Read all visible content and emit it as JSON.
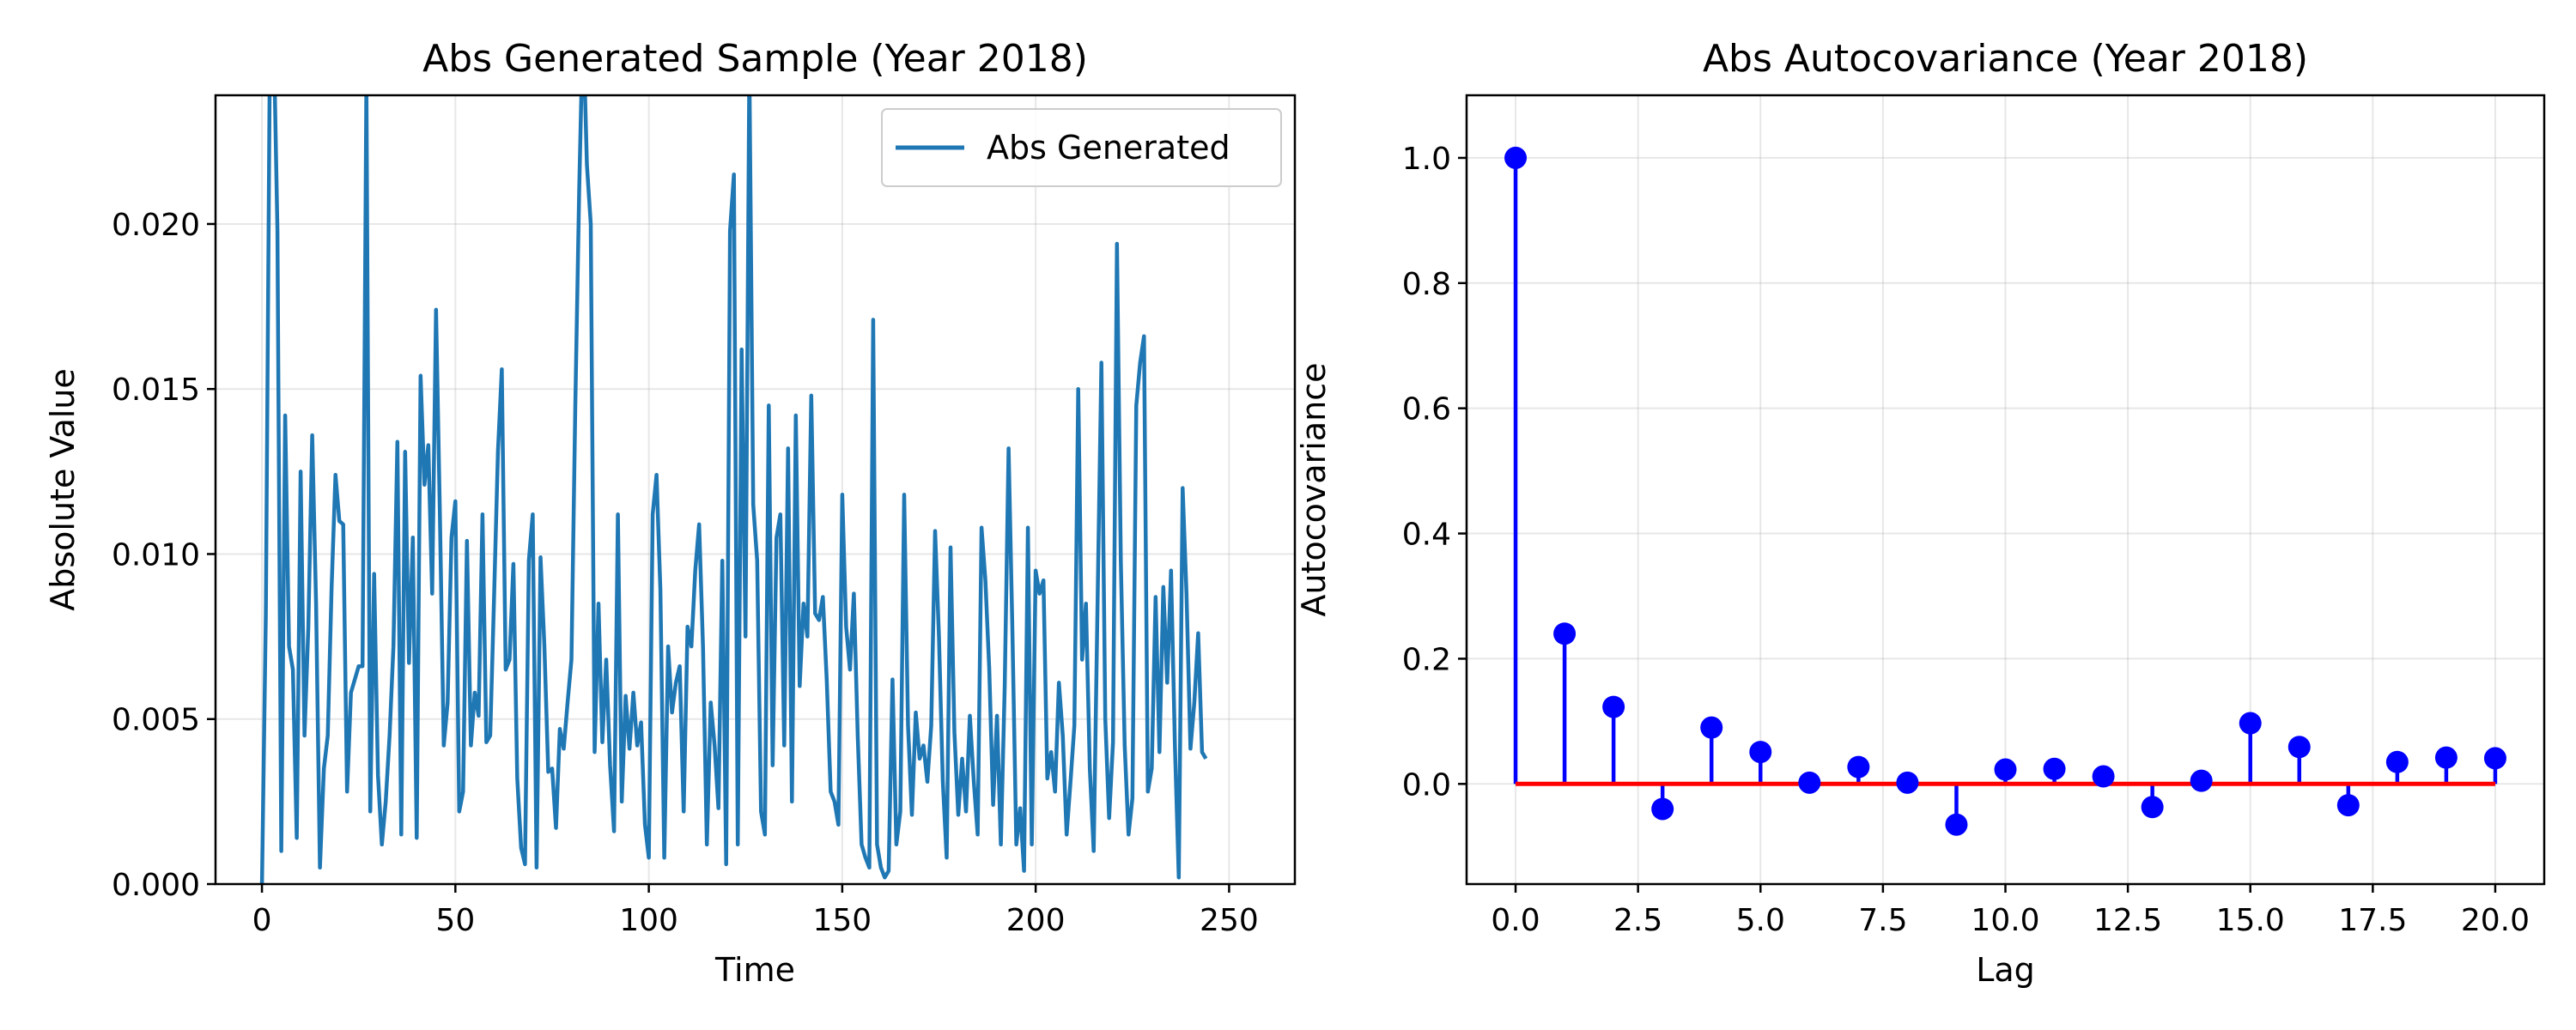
{
  "chart_data": [
    {
      "type": "line",
      "title": "Abs Generated Sample (Year 2018)",
      "xlabel": "Time",
      "ylabel": "Absolute Value",
      "xlim": [
        -12,
        267
      ],
      "ylim": [
        0,
        0.0239
      ],
      "xticks": [
        0,
        50,
        100,
        150,
        200,
        250
      ],
      "yticks": [
        0.0,
        0.005,
        0.01,
        0.015,
        0.02
      ],
      "ytick_labels": [
        "0.000",
        "0.005",
        "0.010",
        "0.015",
        "0.020"
      ],
      "grid": true,
      "legend_position": "top-right",
      "color": "#1f77b4",
      "series": [
        {
          "name": "Abs Generated",
          "x_start": 0,
          "values": [
            0.0,
            0.0082,
            0.0245,
            0.026,
            0.0198,
            0.001,
            0.0142,
            0.0072,
            0.0065,
            0.0014,
            0.0125,
            0.0045,
            0.0078,
            0.0136,
            0.0085,
            0.0005,
            0.0035,
            0.0045,
            0.009,
            0.0124,
            0.011,
            0.0109,
            0.0028,
            0.0058,
            0.0062,
            0.0066,
            0.0066,
            0.0243,
            0.0022,
            0.0094,
            0.0033,
            0.0012,
            0.0025,
            0.0045,
            0.0072,
            0.0134,
            0.0015,
            0.0131,
            0.0067,
            0.0105,
            0.0014,
            0.0154,
            0.0121,
            0.0133,
            0.0088,
            0.0174,
            0.0112,
            0.0042,
            0.0055,
            0.0105,
            0.0116,
            0.0022,
            0.0028,
            0.0104,
            0.0042,
            0.0058,
            0.0051,
            0.0112,
            0.0043,
            0.0045,
            0.0087,
            0.0131,
            0.0156,
            0.0065,
            0.0068,
            0.0097,
            0.0032,
            0.0011,
            0.0006,
            0.0098,
            0.0112,
            0.0005,
            0.0099,
            0.0072,
            0.0034,
            0.0035,
            0.0017,
            0.0047,
            0.0041,
            0.0055,
            0.0068,
            0.0145,
            0.021,
            0.0262,
            0.0218,
            0.02,
            0.004,
            0.0085,
            0.0043,
            0.0068,
            0.0036,
            0.0016,
            0.0112,
            0.0025,
            0.0057,
            0.0041,
            0.0058,
            0.0042,
            0.0049,
            0.0018,
            0.0008,
            0.0112,
            0.0124,
            0.0089,
            0.0008,
            0.0072,
            0.0052,
            0.0061,
            0.0066,
            0.0022,
            0.0078,
            0.0072,
            0.0095,
            0.0109,
            0.0072,
            0.0012,
            0.0055,
            0.0042,
            0.0023,
            0.0098,
            0.0006,
            0.0198,
            0.0215,
            0.0012,
            0.0162,
            0.0075,
            0.0248,
            0.0115,
            0.0098,
            0.0022,
            0.0015,
            0.0145,
            0.0036,
            0.0105,
            0.0112,
            0.0042,
            0.0132,
            0.0025,
            0.0142,
            0.006,
            0.0085,
            0.0075,
            0.0148,
            0.0082,
            0.008,
            0.0087,
            0.0062,
            0.0028,
            0.0025,
            0.0018,
            0.0118,
            0.0078,
            0.0065,
            0.0088,
            0.0045,
            0.0012,
            0.0008,
            0.0005,
            0.0171,
            0.0012,
            0.0005,
            0.0002,
            0.0004,
            0.0062,
            0.0012,
            0.0022,
            0.0118,
            0.0048,
            0.0021,
            0.0052,
            0.0038,
            0.0042,
            0.0031,
            0.0048,
            0.0107,
            0.0075,
            0.0031,
            0.0008,
            0.0102,
            0.0046,
            0.0021,
            0.0038,
            0.0022,
            0.0051,
            0.0031,
            0.0015,
            0.0108,
            0.0092,
            0.0065,
            0.0024,
            0.0051,
            0.0012,
            0.006,
            0.0132,
            0.0076,
            0.0012,
            0.0023,
            0.0004,
            0.0108,
            0.0012,
            0.0095,
            0.0088,
            0.0092,
            0.0032,
            0.004,
            0.0028,
            0.0061,
            0.0045,
            0.0015,
            0.0031,
            0.0048,
            0.015,
            0.0068,
            0.0085,
            0.0035,
            0.001,
            0.0085,
            0.0158,
            0.005,
            0.002,
            0.0043,
            0.0194,
            0.0098,
            0.0042,
            0.0015,
            0.0026,
            0.0145,
            0.0158,
            0.0166,
            0.0028,
            0.0035,
            0.0087,
            0.004,
            0.009,
            0.0061,
            0.0095,
            0.0042,
            0.0002,
            0.012,
            0.0088,
            0.0041,
            0.0055,
            0.0076,
            0.004,
            0.0038
          ]
        }
      ]
    },
    {
      "type": "stem",
      "title": "Abs Autocovariance (Year 2018)",
      "xlabel": "Lag",
      "ylabel": "Autocovariance",
      "xlim": [
        -1,
        21
      ],
      "ylim": [
        -0.16,
        1.1
      ],
      "xticks": [
        0.0,
        2.5,
        5.0,
        7.5,
        10.0,
        12.5,
        15.0,
        17.5,
        20.0
      ],
      "xtick_labels": [
        "0.0",
        "2.5",
        "5.0",
        "7.5",
        "10.0",
        "12.5",
        "15.0",
        "17.5",
        "20.0"
      ],
      "yticks": [
        0.0,
        0.2,
        0.4,
        0.6,
        0.8,
        1.0
      ],
      "ytick_labels": [
        "0.0",
        "0.2",
        "0.4",
        "0.6",
        "0.8",
        "1.0"
      ],
      "grid": true,
      "stem_color": "#0000ff",
      "marker_color": "#0000ff",
      "baseline_color": "#ff0000",
      "lags": [
        0,
        1,
        2,
        3,
        4,
        5,
        6,
        7,
        8,
        9,
        10,
        11,
        12,
        13,
        14,
        15,
        16,
        17,
        18,
        19,
        20
      ],
      "values": [
        1.0,
        0.24,
        0.123,
        -0.04,
        0.09,
        0.051,
        0.002,
        0.027,
        0.002,
        -0.065,
        0.023,
        0.024,
        0.012,
        -0.037,
        0.005,
        0.097,
        0.059,
        -0.034,
        0.035,
        0.042,
        0.041
      ]
    }
  ]
}
